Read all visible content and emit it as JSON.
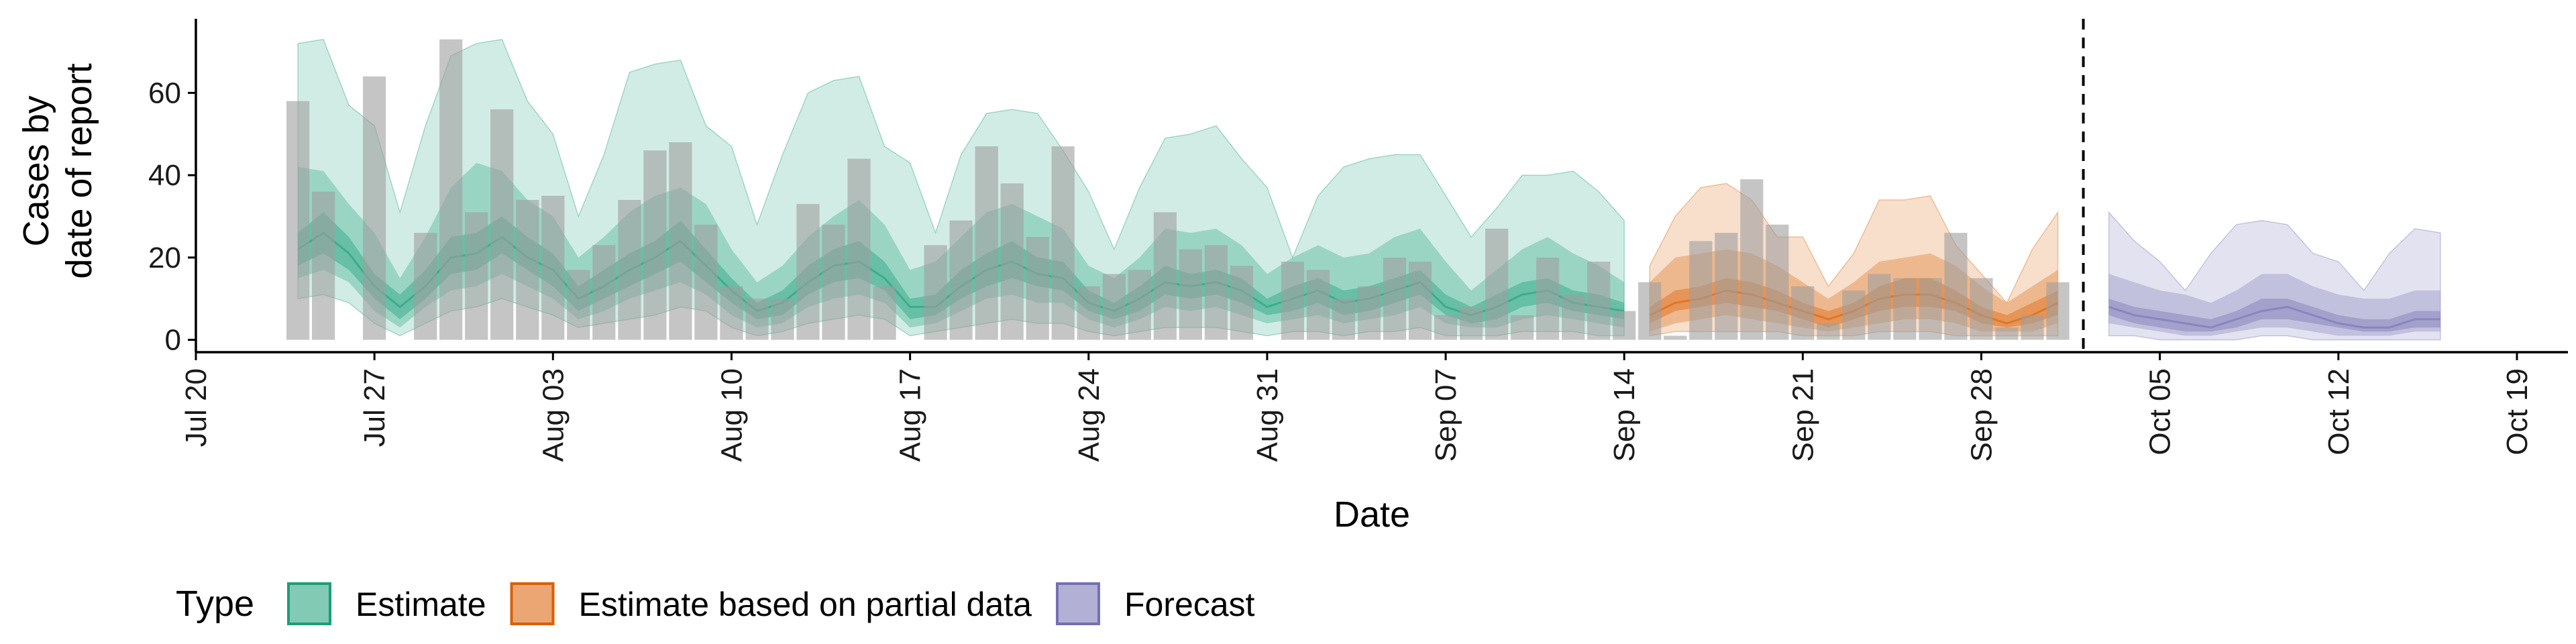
{
  "chart_data": {
    "type": "bar+area",
    "xlabel": "Date",
    "ylabel_lines": [
      "Cases by",
      "date of report"
    ],
    "x_ticks": [
      "Jul 20",
      "Jul 27",
      "Aug 03",
      "Aug 10",
      "Aug 17",
      "Aug 24",
      "Aug 31",
      "Sep 07",
      "Sep 14",
      "Sep 21",
      "Sep 28",
      "Oct 05",
      "Oct 12",
      "Oct 19"
    ],
    "x_tick_dates": [
      "2020-07-20",
      "2020-07-27",
      "2020-08-03",
      "2020-08-10",
      "2020-08-17",
      "2020-08-24",
      "2020-08-31",
      "2020-09-07",
      "2020-09-14",
      "2020-09-21",
      "2020-09-28",
      "2020-10-05",
      "2020-10-12",
      "2020-10-19"
    ],
    "y_ticks": [
      0,
      20,
      40,
      60
    ],
    "xlim": [
      "2020-07-20",
      "2020-10-21"
    ],
    "ylim": [
      -3,
      78
    ],
    "vline_date": "2020-10-02",
    "bar_dates": [
      "2020-07-24",
      "2020-07-25",
      "2020-07-26",
      "2020-07-27",
      "2020-07-28",
      "2020-07-29",
      "2020-07-30",
      "2020-07-31",
      "2020-08-01",
      "2020-08-02",
      "2020-08-03",
      "2020-08-04",
      "2020-08-05",
      "2020-08-06",
      "2020-08-07",
      "2020-08-08",
      "2020-08-09",
      "2020-08-10",
      "2020-08-11",
      "2020-08-12",
      "2020-08-13",
      "2020-08-14",
      "2020-08-15",
      "2020-08-16",
      "2020-08-17",
      "2020-08-18",
      "2020-08-19",
      "2020-08-20",
      "2020-08-21",
      "2020-08-22",
      "2020-08-23",
      "2020-08-24",
      "2020-08-25",
      "2020-08-26",
      "2020-08-27",
      "2020-08-28",
      "2020-08-29",
      "2020-08-30",
      "2020-08-31",
      "2020-09-01",
      "2020-09-02",
      "2020-09-03",
      "2020-09-04",
      "2020-09-05",
      "2020-09-06",
      "2020-09-07",
      "2020-09-08",
      "2020-09-09",
      "2020-09-10",
      "2020-09-11",
      "2020-09-12",
      "2020-09-13",
      "2020-09-14",
      "2020-09-15",
      "2020-09-16",
      "2020-09-17",
      "2020-09-18",
      "2020-09-19",
      "2020-09-20",
      "2020-09-21",
      "2020-09-22",
      "2020-09-23",
      "2020-09-24",
      "2020-09-25",
      "2020-09-26",
      "2020-09-27",
      "2020-09-28",
      "2020-09-29",
      "2020-09-30",
      "2020-10-01"
    ],
    "bar_values": [
      58,
      36,
      0,
      64,
      0,
      26,
      73,
      31,
      56,
      34,
      35,
      17,
      23,
      34,
      46,
      48,
      28,
      13,
      10,
      10,
      33,
      28,
      44,
      13,
      0,
      23,
      29,
      47,
      38,
      25,
      47,
      13,
      16,
      17,
      31,
      22,
      23,
      18,
      0,
      19,
      17,
      10,
      13,
      20,
      19,
      6,
      8,
      27,
      6,
      20,
      11,
      19,
      7,
      14,
      1,
      24,
      26,
      39,
      28,
      13,
      4,
      12,
      16,
      15,
      15,
      26,
      15,
      3,
      6,
      14
    ],
    "series": [
      {
        "name": "Estimate",
        "color": "#1b9e77",
        "dates": [
          "2020-07-24",
          "2020-07-25",
          "2020-07-26",
          "2020-07-27",
          "2020-07-28",
          "2020-07-29",
          "2020-07-30",
          "2020-07-31",
          "2020-08-01",
          "2020-08-02",
          "2020-08-03",
          "2020-08-04",
          "2020-08-05",
          "2020-08-06",
          "2020-08-07",
          "2020-08-08",
          "2020-08-09",
          "2020-08-10",
          "2020-08-11",
          "2020-08-12",
          "2020-08-13",
          "2020-08-14",
          "2020-08-15",
          "2020-08-16",
          "2020-08-17",
          "2020-08-18",
          "2020-08-19",
          "2020-08-20",
          "2020-08-21",
          "2020-08-22",
          "2020-08-23",
          "2020-08-24",
          "2020-08-25",
          "2020-08-26",
          "2020-08-27",
          "2020-08-28",
          "2020-08-29",
          "2020-08-30",
          "2020-08-31",
          "2020-09-01",
          "2020-09-02",
          "2020-09-03",
          "2020-09-04",
          "2020-09-05",
          "2020-09-06",
          "2020-09-07",
          "2020-09-08",
          "2020-09-09",
          "2020-09-10",
          "2020-09-11",
          "2020-09-12",
          "2020-09-13",
          "2020-09-14"
        ],
        "median": [
          22,
          26,
          21,
          13,
          8,
          13,
          20,
          21,
          25,
          20,
          17,
          10,
          13,
          17,
          20,
          24,
          18,
          12,
          7,
          9,
          14,
          18,
          19,
          15,
          8,
          8,
          13,
          17,
          19,
          16,
          15,
          9,
          7,
          10,
          14,
          13,
          14,
          12,
          8,
          10,
          12,
          9,
          10,
          12,
          14,
          8,
          6,
          8,
          11,
          12,
          9,
          8,
          7
        ],
        "lower50": [
          18,
          21,
          17,
          10,
          5,
          10,
          16,
          17,
          21,
          17,
          13,
          7,
          10,
          13,
          16,
          19,
          14,
          9,
          5,
          6,
          11,
          14,
          15,
          12,
          5,
          6,
          10,
          13,
          15,
          13,
          12,
          7,
          5,
          7,
          11,
          10,
          11,
          9,
          6,
          7,
          9,
          6,
          7,
          9,
          11,
          6,
          4,
          5,
          8,
          9,
          7,
          6,
          5
        ],
        "upper50": [
          26,
          31,
          25,
          16,
          11,
          17,
          25,
          26,
          30,
          25,
          21,
          13,
          17,
          21,
          24,
          29,
          22,
          15,
          9,
          12,
          18,
          22,
          24,
          19,
          10,
          11,
          17,
          21,
          24,
          20,
          19,
          12,
          9,
          13,
          18,
          16,
          17,
          15,
          10,
          13,
          15,
          12,
          13,
          15,
          17,
          11,
          8,
          11,
          14,
          15,
          12,
          11,
          9
        ],
        "lower90": [
          15,
          17,
          14,
          7,
          3,
          8,
          12,
          13,
          16,
          13,
          10,
          5,
          7,
          10,
          12,
          14,
          11,
          6,
          3,
          4,
          8,
          10,
          11,
          9,
          3,
          4,
          7,
          10,
          11,
          9,
          9,
          5,
          3,
          5,
          8,
          7,
          8,
          6,
          4,
          5,
          6,
          4,
          5,
          6,
          8,
          4,
          3,
          3,
          5,
          6,
          5,
          4,
          3
        ],
        "upper90": [
          42,
          41,
          33,
          26,
          15,
          25,
          37,
          43,
          41,
          34,
          30,
          20,
          25,
          31,
          35,
          37,
          33,
          22,
          14,
          18,
          25,
          30,
          34,
          28,
          17,
          19,
          25,
          31,
          33,
          30,
          27,
          18,
          15,
          20,
          27,
          26,
          27,
          23,
          16,
          20,
          23,
          20,
          21,
          25,
          27,
          19,
          12,
          17,
          22,
          25,
          21,
          18,
          14
        ],
        "lower_outer": [
          10,
          11,
          9,
          4,
          1,
          4,
          7,
          8,
          10,
          8,
          6,
          3,
          4,
          5,
          6,
          8,
          7,
          3,
          1,
          2,
          4,
          5,
          6,
          5,
          1,
          2,
          3,
          4,
          5,
          4,
          4,
          2,
          1,
          2,
          3,
          3,
          3,
          2,
          1,
          2,
          2,
          1,
          2,
          2,
          3,
          1,
          1,
          1,
          2,
          2,
          2,
          1,
          1
        ],
        "upper_outer": [
          72,
          73,
          57,
          52,
          31,
          52,
          69,
          72,
          73,
          58,
          50,
          30,
          45,
          65,
          67,
          68,
          52,
          47,
          28,
          45,
          60,
          63,
          64,
          47,
          43,
          26,
          45,
          55,
          56,
          55,
          46,
          36,
          22,
          37,
          49,
          50,
          52,
          44,
          37,
          20,
          35,
          42,
          44,
          45,
          45,
          35,
          25,
          32,
          40,
          40,
          41,
          36,
          29
        ]
      },
      {
        "name": "Estimate based on partial data",
        "color": "#d95f02",
        "dates": [
          "2020-09-15",
          "2020-09-16",
          "2020-09-17",
          "2020-09-18",
          "2020-09-19",
          "2020-09-20",
          "2020-09-21",
          "2020-09-22",
          "2020-09-23",
          "2020-09-24",
          "2020-09-25",
          "2020-09-26",
          "2020-09-27",
          "2020-09-28",
          "2020-09-29",
          "2020-09-30",
          "2020-10-01"
        ],
        "median": [
          6,
          9,
          10,
          12,
          11,
          9,
          7,
          5,
          7,
          10,
          11,
          11,
          9,
          6,
          4,
          6,
          9
        ],
        "lower50": [
          4,
          7,
          8,
          9,
          8,
          7,
          5,
          3,
          5,
          7,
          8,
          8,
          7,
          4,
          3,
          4,
          6
        ],
        "upper50": [
          8,
          12,
          13,
          15,
          14,
          12,
          9,
          7,
          9,
          13,
          15,
          15,
          12,
          8,
          6,
          9,
          12
        ],
        "lower90": [
          2,
          4,
          5,
          6,
          5,
          4,
          3,
          2,
          3,
          4,
          5,
          5,
          4,
          2,
          2,
          2,
          4
        ],
        "upper90": [
          14,
          20,
          21,
          22,
          21,
          18,
          14,
          10,
          14,
          19,
          20,
          21,
          18,
          13,
          9,
          13,
          17
        ],
        "lower_outer": [
          1,
          2,
          2,
          2,
          2,
          2,
          1,
          1,
          1,
          2,
          2,
          2,
          1,
          1,
          1,
          1,
          1
        ],
        "upper_outer": [
          18,
          30,
          37,
          38,
          34,
          25,
          25,
          13,
          21,
          34,
          34,
          35,
          23,
          16,
          9,
          22,
          31
        ]
      },
      {
        "name": "Forecast",
        "color": "#7570b3",
        "dates": [
          "2020-10-03",
          "2020-10-04",
          "2020-10-05",
          "2020-10-06",
          "2020-10-07",
          "2020-10-08",
          "2020-10-09",
          "2020-10-10",
          "2020-10-11",
          "2020-10-12",
          "2020-10-13",
          "2020-10-14",
          "2020-10-15",
          "2020-10-16"
        ],
        "median": [
          8,
          6,
          5,
          4,
          3,
          5,
          7,
          8,
          6,
          4,
          3,
          3,
          5,
          5
        ],
        "lower50": [
          6,
          4,
          3,
          2,
          2,
          3,
          5,
          5,
          4,
          3,
          2,
          2,
          3,
          3
        ],
        "upper50": [
          10,
          8,
          7,
          6,
          5,
          7,
          10,
          10,
          8,
          6,
          5,
          5,
          7,
          7
        ],
        "lower90": [
          4,
          3,
          2,
          1,
          1,
          2,
          3,
          3,
          2,
          1,
          1,
          1,
          2,
          2
        ],
        "upper90": [
          16,
          14,
          12,
          11,
          9,
          12,
          16,
          16,
          13,
          11,
          10,
          10,
          12,
          12
        ],
        "lower_outer": [
          1,
          1,
          0,
          0,
          0,
          0,
          1,
          1,
          0,
          0,
          0,
          0,
          0,
          0
        ],
        "upper_outer": [
          31,
          24,
          19,
          12,
          21,
          28,
          29,
          28,
          21,
          19,
          12,
          21,
          27,
          26
        ]
      }
    ],
    "legend": {
      "title": "Type",
      "position": "bottom",
      "items": [
        {
          "label": "Estimate",
          "color": "#1b9e77"
        },
        {
          "label": "Estimate based on partial data",
          "color": "#d95f02"
        },
        {
          "label": "Forecast",
          "color": "#7570b3"
        }
      ]
    },
    "grid": false
  }
}
